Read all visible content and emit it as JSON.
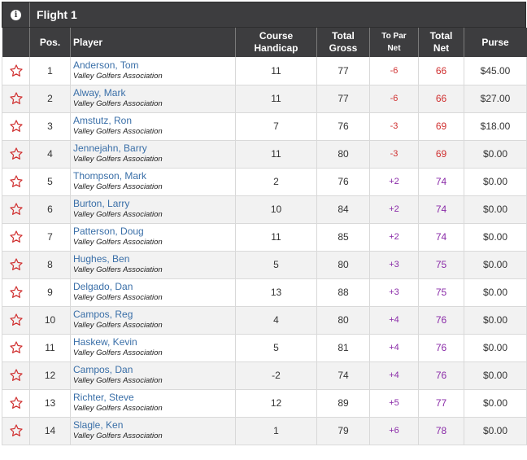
{
  "flight": {
    "title": "Flight 1",
    "info_icon": "info-icon"
  },
  "columns": {
    "fav": "",
    "pos": "Pos.",
    "player": "Player",
    "handicap_line1": "Course",
    "handicap_line2": "Handicap",
    "gross_line1": "Total",
    "gross_line2": "Gross",
    "topar_line1": "To Par",
    "topar_line2": "Net",
    "net_line1": "Total",
    "net_line2": "Net",
    "purse": "Purse"
  },
  "colors": {
    "header_bg": "#3d3d3f",
    "link": "#3a6fa8",
    "under_par": "#d03030",
    "over_par": "#8a2ba8",
    "star": "#d03030"
  },
  "rows": [
    {
      "pos": "1",
      "name": "Anderson, Tom",
      "org": "Valley Golfers Association",
      "handicap": "11",
      "gross": "77",
      "topar": "-6",
      "net": "66",
      "purse": "$45.00"
    },
    {
      "pos": "2",
      "name": "Alway, Mark",
      "org": "Valley Golfers Association",
      "handicap": "11",
      "gross": "77",
      "topar": "-6",
      "net": "66",
      "purse": "$27.00"
    },
    {
      "pos": "3",
      "name": "Amstutz, Ron",
      "org": "Valley Golfers Association",
      "handicap": "7",
      "gross": "76",
      "topar": "-3",
      "net": "69",
      "purse": "$18.00"
    },
    {
      "pos": "4",
      "name": "Jennejahn, Barry",
      "org": "Valley Golfers Association",
      "handicap": "11",
      "gross": "80",
      "topar": "-3",
      "net": "69",
      "purse": "$0.00"
    },
    {
      "pos": "5",
      "name": "Thompson, Mark",
      "org": "Valley Golfers Association",
      "handicap": "2",
      "gross": "76",
      "topar": "+2",
      "net": "74",
      "purse": "$0.00"
    },
    {
      "pos": "6",
      "name": "Burton, Larry",
      "org": "Valley Golfers Association",
      "handicap": "10",
      "gross": "84",
      "topar": "+2",
      "net": "74",
      "purse": "$0.00"
    },
    {
      "pos": "7",
      "name": "Patterson, Doug",
      "org": "Valley Golfers Association",
      "handicap": "11",
      "gross": "85",
      "topar": "+2",
      "net": "74",
      "purse": "$0.00"
    },
    {
      "pos": "8",
      "name": "Hughes, Ben",
      "org": "Valley Golfers Association",
      "handicap": "5",
      "gross": "80",
      "topar": "+3",
      "net": "75",
      "purse": "$0.00"
    },
    {
      "pos": "9",
      "name": "Delgado, Dan",
      "org": "Valley Golfers Association",
      "handicap": "13",
      "gross": "88",
      "topar": "+3",
      "net": "75",
      "purse": "$0.00"
    },
    {
      "pos": "10",
      "name": "Campos, Reg",
      "org": "Valley Golfers Association",
      "handicap": "4",
      "gross": "80",
      "topar": "+4",
      "net": "76",
      "purse": "$0.00"
    },
    {
      "pos": "11",
      "name": "Haskew, Kevin",
      "org": "Valley Golfers Association",
      "handicap": "5",
      "gross": "81",
      "topar": "+4",
      "net": "76",
      "purse": "$0.00"
    },
    {
      "pos": "12",
      "name": "Campos, Dan",
      "org": "Valley Golfers Association",
      "handicap": "-2",
      "gross": "74",
      "topar": "+4",
      "net": "76",
      "purse": "$0.00"
    },
    {
      "pos": "13",
      "name": "Richter, Steve",
      "org": "Valley Golfers Association",
      "handicap": "12",
      "gross": "89",
      "topar": "+5",
      "net": "77",
      "purse": "$0.00"
    },
    {
      "pos": "14",
      "name": "Slagle, Ken",
      "org": "Valley Golfers Association",
      "handicap": "1",
      "gross": "79",
      "topar": "+6",
      "net": "78",
      "purse": "$0.00"
    }
  ]
}
